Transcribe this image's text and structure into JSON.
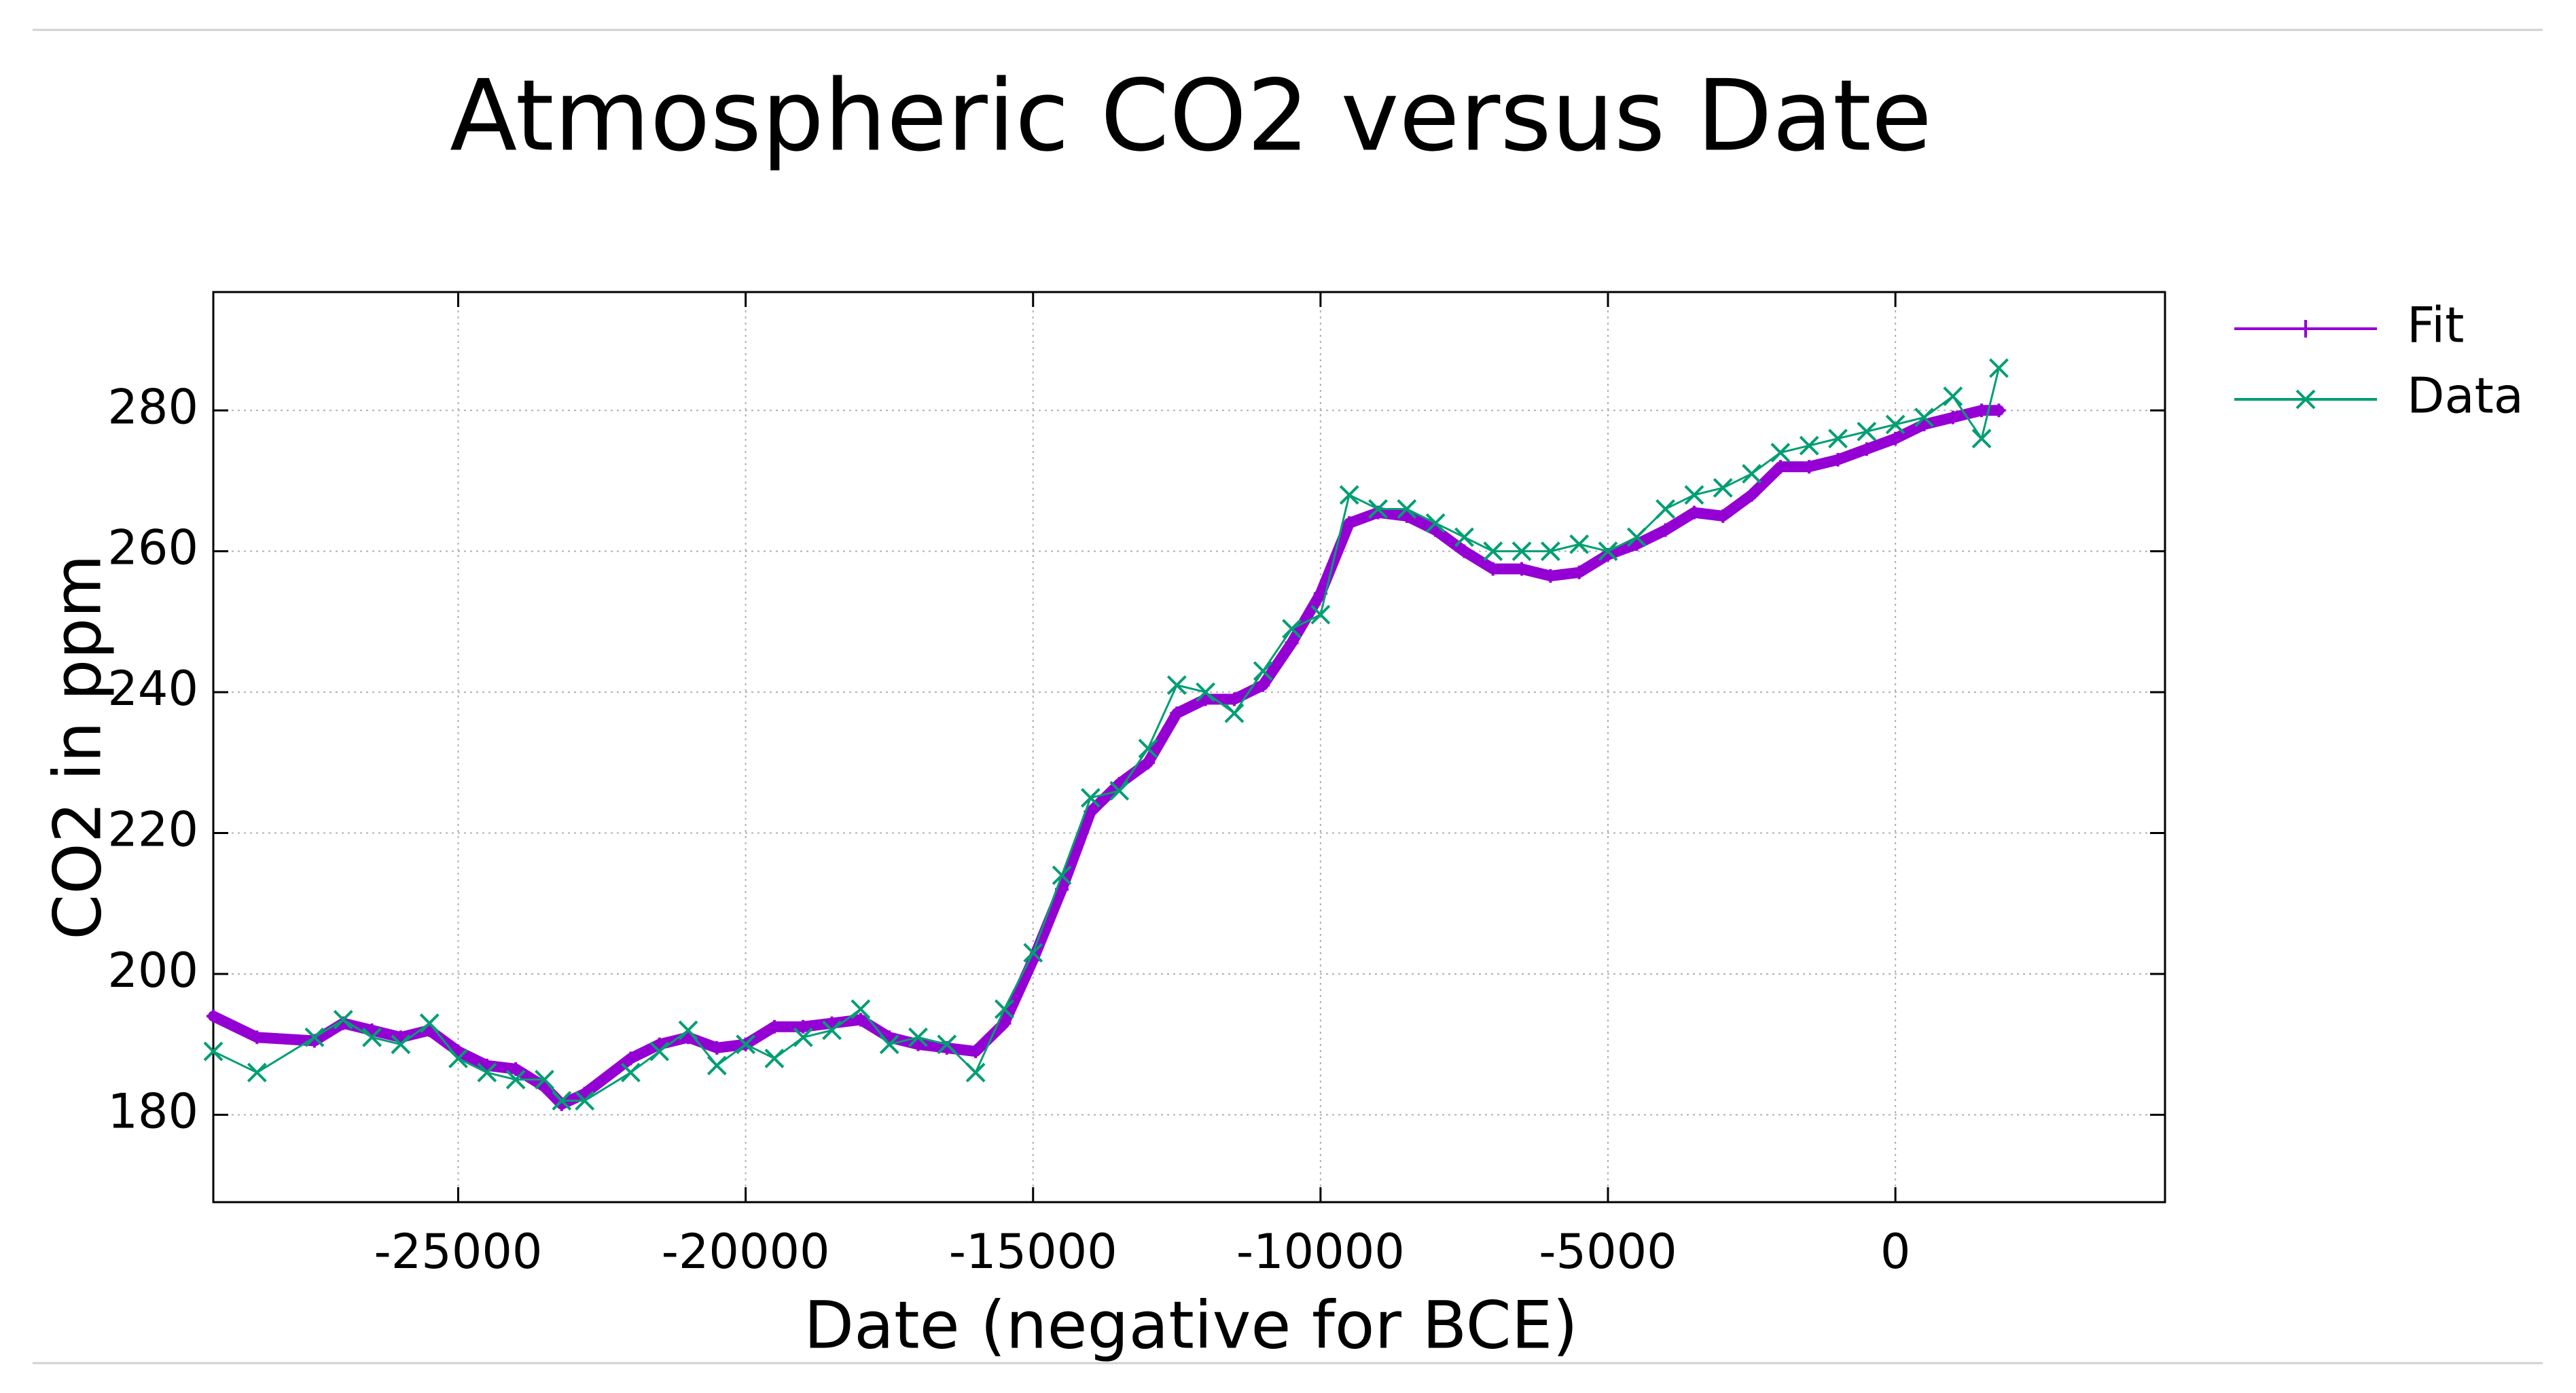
{
  "chart_data": {
    "type": "line",
    "title": "Atmospheric CO2 versus Date",
    "x_label": "Date (negative for BCE)",
    "y_label": "CO2 in ppm",
    "x": [
      -29260,
      -28500,
      -27500,
      -27000,
      -26500,
      -26000,
      -25500,
      -25000,
      -24500,
      -24000,
      -23500,
      -23200,
      -22800,
      -22000,
      -21500,
      -21000,
      -20500,
      -20000,
      -19500,
      -19000,
      -18500,
      -18000,
      -17500,
      -17000,
      -16500,
      -16000,
      -15500,
      -15000,
      -14500,
      -14000,
      -13500,
      -13000,
      -12500,
      -12000,
      -11500,
      -11000,
      -10500,
      -10000,
      -9500,
      -9000,
      -8500,
      -8000,
      -7500,
      -7000,
      -6500,
      -6000,
      -5500,
      -5000,
      -4500,
      -4000,
      -3500,
      -3000,
      -2500,
      -2000,
      -1500,
      -1000,
      -500,
      0,
      500,
      1000,
      1500,
      1800
    ],
    "series": [
      {
        "name": "Fit",
        "color": "#9400d3",
        "marker": "plus",
        "values": [
          194,
          191,
          190.5,
          193,
          192,
          191,
          192,
          189,
          187,
          186.5,
          184,
          181.5,
          183,
          188,
          190,
          191,
          189.5,
          190,
          192.5,
          192.5,
          193,
          193.5,
          191,
          190,
          189.5,
          189,
          193,
          202,
          212,
          223,
          227,
          230,
          237,
          239,
          239,
          241,
          247,
          254,
          264,
          265.5,
          265,
          263,
          260,
          257.5,
          257.5,
          256.5,
          257,
          259.5,
          261,
          263,
          265.5,
          265,
          268,
          272,
          272,
          273,
          274.5,
          276,
          278,
          279,
          280,
          280
        ]
      },
      {
        "name": "Data",
        "color": "#009e73",
        "marker": "cross",
        "values": [
          189,
          186,
          191,
          193.5,
          191,
          190,
          193,
          188,
          186,
          185,
          185,
          182,
          182,
          186,
          189,
          192,
          187,
          190,
          188,
          191,
          192,
          195,
          190,
          191,
          190,
          186,
          195,
          203,
          214,
          225,
          226,
          232,
          241,
          240,
          237,
          243,
          249,
          251,
          268,
          266,
          266,
          264,
          262,
          260,
          260,
          260,
          261,
          260,
          262,
          266,
          268,
          269,
          271,
          274,
          275,
          276,
          277,
          278,
          279,
          282,
          276,
          286
        ]
      }
    ],
    "xlim": [
      -29260,
      4690
    ],
    "ylim": [
      167.6,
      296.8
    ],
    "xticks": [
      -25000,
      -20000,
      -15000,
      -10000,
      -5000,
      0
    ],
    "yticks": [
      180,
      200,
      220,
      240,
      260,
      280
    ],
    "grid": true,
    "legend": "outside-right"
  }
}
